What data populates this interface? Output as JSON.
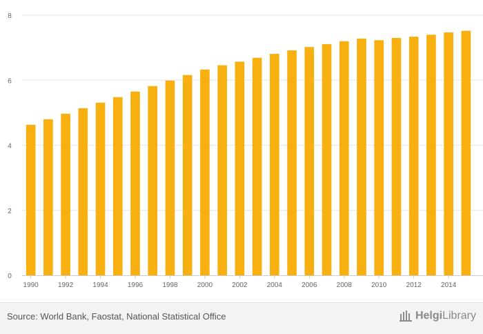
{
  "chart_data": {
    "type": "bar",
    "categories": [
      "1990",
      "1991",
      "1992",
      "1993",
      "1994",
      "1995",
      "1996",
      "1997",
      "1998",
      "1999",
      "2000",
      "2001",
      "2002",
      "2003",
      "2004",
      "2005",
      "2006",
      "2007",
      "2008",
      "2009",
      "2010",
      "2011",
      "2012",
      "2013",
      "2014",
      "2015"
    ],
    "x_tick_labels": [
      "1990",
      "1992",
      "1994",
      "1996",
      "1998",
      "2000",
      "2002",
      "2004",
      "2006",
      "2008",
      "2010",
      "2012",
      "2014"
    ],
    "values": [
      4.63,
      4.8,
      4.97,
      5.14,
      5.31,
      5.48,
      5.65,
      5.82,
      5.99,
      6.16,
      6.33,
      6.46,
      6.57,
      6.69,
      6.81,
      6.92,
      7.02,
      7.11,
      7.2,
      7.28,
      7.23,
      7.3,
      7.34,
      7.4,
      7.47,
      7.52
    ],
    "ylim": [
      0,
      8
    ],
    "y_ticks": [
      "0",
      "2",
      "4",
      "6",
      "8"
    ],
    "bar_color": "#f8b010",
    "grid": true,
    "title": "",
    "xlabel": "",
    "ylabel": ""
  },
  "footer": {
    "source": "Source: World Bank, Faostat, National Statistical Office",
    "logo_part1": "Helgi",
    "logo_part2": "Library"
  }
}
